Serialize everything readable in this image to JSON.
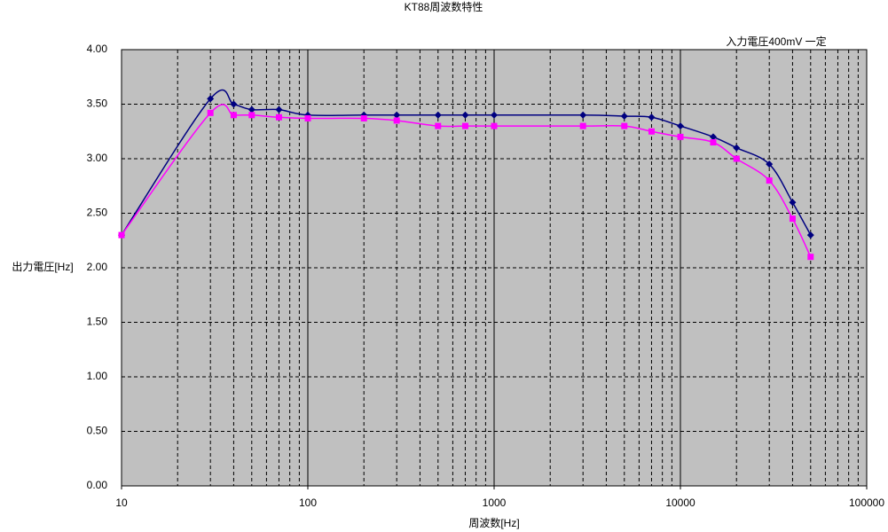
{
  "chart_data": {
    "type": "line",
    "title": "KT88周波数特性",
    "annotation": "入力電圧400mV 一定",
    "x_label": "周波数[Hz]",
    "y_label": "出力電圧[Hz]",
    "x": [
      10,
      30,
      40,
      50,
      70,
      100,
      200,
      300,
      500,
      700,
      1000,
      3000,
      5000,
      7000,
      10000,
      15000,
      20000,
      30000,
      40000,
      50000
    ],
    "series": [
      {
        "color": "#000080",
        "marker": "diamond",
        "values": [
          2.3,
          3.55,
          3.5,
          3.45,
          3.45,
          3.4,
          3.4,
          3.4,
          3.4,
          3.4,
          3.4,
          3.4,
          3.39,
          3.38,
          3.3,
          3.2,
          3.1,
          2.95,
          2.6,
          2.3
        ]
      },
      {
        "color": "#ff00ff",
        "marker": "square",
        "values": [
          2.3,
          3.42,
          3.4,
          3.4,
          3.38,
          3.37,
          3.37,
          3.35,
          3.3,
          3.3,
          3.3,
          3.3,
          3.3,
          3.25,
          3.2,
          3.15,
          3.0,
          2.8,
          2.45,
          2.1
        ]
      }
    ],
    "xscale": "log",
    "xlim": [
      10,
      100000
    ],
    "xticks": [
      10,
      100,
      1000,
      10000,
      100000
    ],
    "xminorticks": [
      20,
      30,
      40,
      50,
      60,
      70,
      80,
      90,
      200,
      300,
      400,
      500,
      600,
      700,
      800,
      900,
      2000,
      3000,
      4000,
      5000,
      6000,
      7000,
      8000,
      9000,
      20000,
      30000,
      40000,
      50000,
      60000,
      70000,
      80000,
      90000
    ],
    "ylim": [
      0,
      4
    ],
    "yticks": [
      {
        "value": 0,
        "label": "0.00"
      },
      {
        "value": 0.5,
        "label": "0.50"
      },
      {
        "value": 1,
        "label": "1.00"
      },
      {
        "value": 1.5,
        "label": "1.50"
      },
      {
        "value": 2,
        "label": "2.00"
      },
      {
        "value": 2.5,
        "label": "2.50"
      },
      {
        "value": 3,
        "label": "3.00"
      },
      {
        "value": 3.5,
        "label": "3.50"
      },
      {
        "value": 4,
        "label": "4.00"
      }
    ],
    "grid": true,
    "plot_background": "#c0c0c0"
  }
}
